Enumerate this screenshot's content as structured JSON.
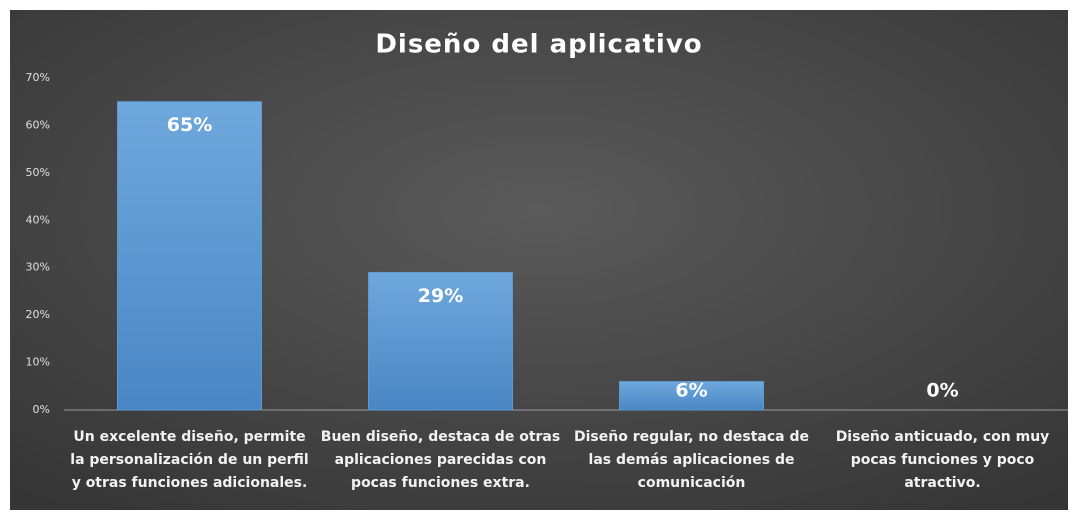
{
  "chart_data": {
    "type": "bar",
    "title": "Diseño del aplicativo",
    "categories": [
      "Un excelente diseño, permite la personalización de un perfil y otras funciones adicionales.",
      "Buen diseño, destaca de otras aplicaciones parecidas con pocas funciones extra.",
      "Diseño regular, no destaca de las demás aplicaciones de comunicación",
      "Diseño anticuado, con muy pocas funciones y poco atractivo."
    ],
    "values": [
      65,
      29,
      6,
      0
    ],
    "value_labels": [
      "65%",
      "29%",
      "6%",
      "0%"
    ],
    "color": "#5b9bd5",
    "ylim": [
      0,
      70
    ],
    "yticks": [
      {
        "value": 0,
        "label": "0%"
      },
      {
        "value": 10,
        "label": "10%"
      },
      {
        "value": 20,
        "label": "20%"
      },
      {
        "value": 30,
        "label": "30%"
      },
      {
        "value": 40,
        "label": "40%"
      },
      {
        "value": 50,
        "label": "50%"
      },
      {
        "value": 60,
        "label": "60%"
      },
      {
        "value": 70,
        "label": "70%"
      }
    ],
    "grid": false
  }
}
